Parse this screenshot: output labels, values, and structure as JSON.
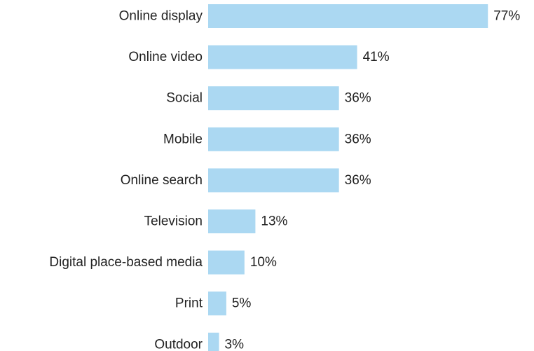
{
  "chart_data": {
    "type": "bar",
    "orientation": "horizontal",
    "categories": [
      "Online display",
      "Online video",
      "Social",
      "Mobile",
      "Online search",
      "Television",
      "Digital place-based media",
      "Print",
      "Outdoor"
    ],
    "values": [
      77,
      41,
      36,
      36,
      36,
      13,
      10,
      5,
      3
    ],
    "value_labels": [
      "77%",
      "41%",
      "36%",
      "36%",
      "36%",
      "13%",
      "10%",
      "5%",
      "3%"
    ],
    "unit": "%",
    "title": "",
    "xlabel": "",
    "ylabel": "",
    "grid": false,
    "legend": "none",
    "bar_color": "#abd8f2"
  }
}
